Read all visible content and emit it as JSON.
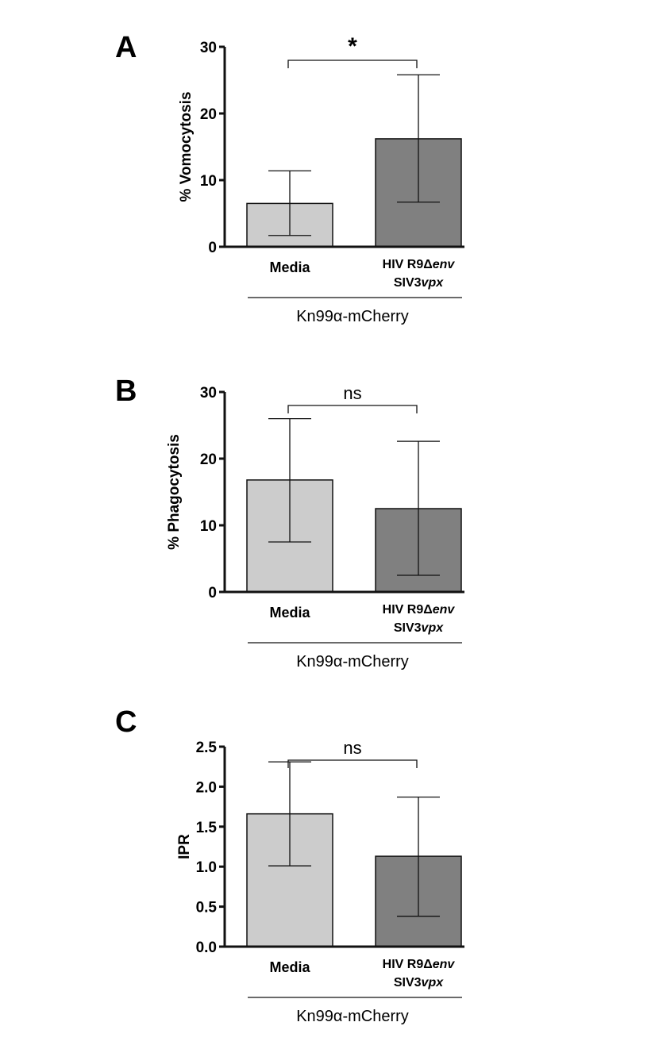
{
  "chart_data": [
    {
      "type": "bar",
      "panel_label": "A",
      "ylabel": "% Vomocytosis",
      "ylim": [
        0,
        30
      ],
      "yticks": [
        "0",
        "10",
        "20",
        "30"
      ],
      "ytick_values": [
        0,
        10,
        20,
        30
      ],
      "categories": [
        "Media",
        "HIV R9Δenv SIV3vpx"
      ],
      "category_labels": [
        {
          "line1": "Media",
          "line2": ""
        },
        {
          "line1_plain": "HIV R9Δ",
          "line1_italic": "env",
          "line2_plain": "SIV3",
          "line2_italic": "vpx"
        }
      ],
      "values": [
        6.5,
        16.2
      ],
      "error_high": [
        11.4,
        25.8
      ],
      "error_low": [
        1.7,
        6.7
      ],
      "colors": [
        "#cccccc",
        "#808080"
      ],
      "significance": "*",
      "group_label": "Kn99α-mCherry"
    },
    {
      "type": "bar",
      "panel_label": "B",
      "ylabel": "% Phagocytosis",
      "ylim": [
        0,
        30
      ],
      "yticks": [
        "0",
        "10",
        "20",
        "30"
      ],
      "ytick_values": [
        0,
        10,
        20,
        30
      ],
      "categories": [
        "Media",
        "HIV R9Δenv SIV3vpx"
      ],
      "category_labels": [
        {
          "line1": "Media",
          "line2": ""
        },
        {
          "line1_plain": "HIV R9Δ",
          "line1_italic": "env",
          "line2_plain": "SIV3",
          "line2_italic": "vpx"
        }
      ],
      "values": [
        16.8,
        12.5
      ],
      "error_high": [
        26.0,
        22.6
      ],
      "error_low": [
        7.5,
        2.5
      ],
      "colors": [
        "#cccccc",
        "#808080"
      ],
      "significance": "ns",
      "group_label": "Kn99α-mCherry"
    },
    {
      "type": "bar",
      "panel_label": "C",
      "ylabel": "IPR",
      "ylim": [
        0,
        2.5
      ],
      "yticks": [
        "0.0",
        "0.5",
        "1.0",
        "1.5",
        "2.0",
        "2.5"
      ],
      "ytick_values": [
        0,
        0.5,
        1.0,
        1.5,
        2.0,
        2.5
      ],
      "categories": [
        "Media",
        "HIV R9Δenv SIV3vpx"
      ],
      "category_labels": [
        {
          "line1": "Media",
          "line2": ""
        },
        {
          "line1_plain": "HIV R9Δ",
          "line1_italic": "env",
          "line2_plain": "SIV3",
          "line2_italic": "vpx"
        }
      ],
      "values": [
        1.66,
        1.13
      ],
      "error_high": [
        2.31,
        1.87
      ],
      "error_low": [
        1.01,
        0.38
      ],
      "colors": [
        "#cccccc",
        "#808080"
      ],
      "significance": "ns",
      "group_label": "Kn99α-mCherry"
    }
  ]
}
